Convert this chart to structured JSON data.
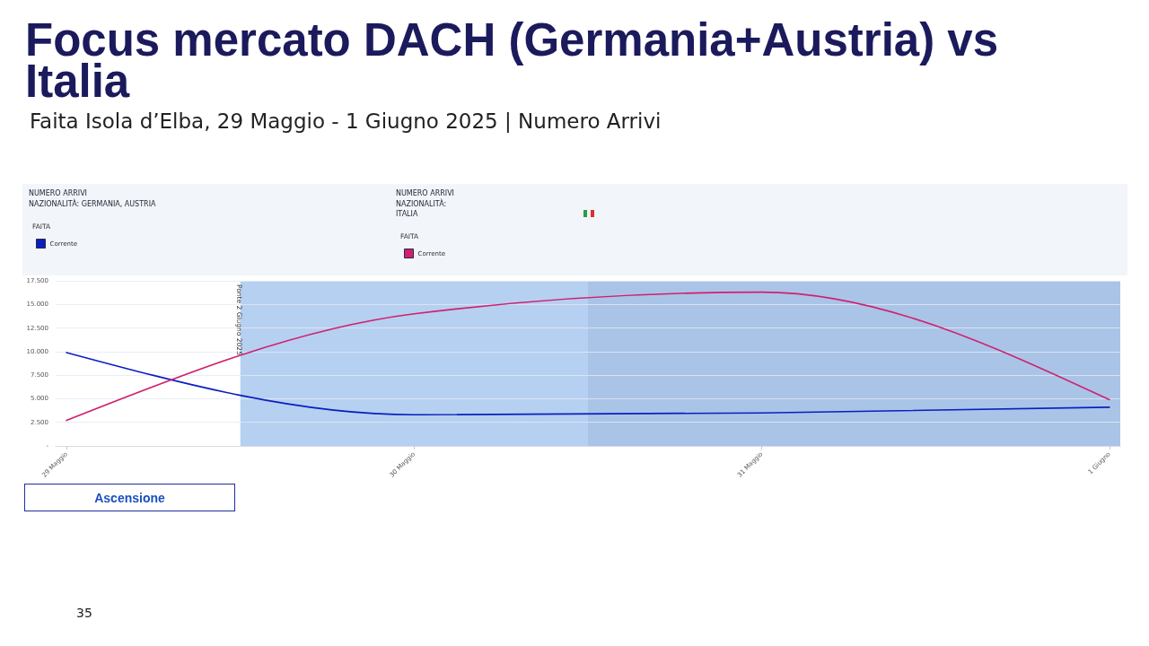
{
  "chart_data": {
    "type": "line",
    "title": "Focus mercato DACH (Germania+Austria) vs Italia",
    "subtitle": "Faita Isola d’Elba, 29 Maggio - 1 Giugno 2025 | Numero Arrivi",
    "legend_title": "FAITA",
    "annotations": [
      "NUMERO ARRIVI\nNAZIONALITÀ: GERMANIA, AUSTRIA",
      "NUMERO ARRIVI\nNAZIONALITÀ:\nITALIA",
      "Ascensione",
      "35"
    ],
    "x": [
      "2025-05-29",
      "2025-05-30",
      "2025-05-31",
      "2025-06-01"
    ],
    "series": [
      {
        "name": "Corrente",
        "color": "#0b1fbf",
        "values": [
          9900,
          3300,
          3500,
          4100
        ]
      },
      {
        "name": "Corrente",
        "color": "#d0206f",
        "values": [
          2700,
          14000,
          16300,
          4900
        ]
      }
    ],
    "xlim": [
      "2025-05-28T23:15",
      "2025-06-01T00:45"
    ],
    "xticks": [
      {
        "value": "2025-05-29",
        "label": "29 Maggio"
      },
      {
        "value": "2025-05-30",
        "label": "30 Maggio"
      },
      {
        "value": "2025-05-31",
        "label": "31 Maggio"
      },
      {
        "value": "2025-06-01",
        "label": "1 Giugno"
      }
    ],
    "ylim": [
      0,
      17500
    ],
    "yticks": [
      {
        "value": 0,
        "label": "-"
      },
      {
        "value": 2500,
        "label": "2.500"
      },
      {
        "value": 5000,
        "label": "5.000"
      },
      {
        "value": 7500,
        "label": "7.500"
      },
      {
        "value": 10000,
        "label": "10.000"
      },
      {
        "value": 12500,
        "label": "12.500"
      },
      {
        "value": 15000,
        "label": "15.000"
      },
      {
        "value": 17500,
        "label": "17.500"
      }
    ],
    "grid": "y",
    "legend": "top left",
    "marker": "none",
    "bands": [
      {
        "axis": "x",
        "from": "2025-05-29T12:00",
        "to": "2025-06-01T00:45",
        "label": "Ponte 2 Giugno 2025",
        "color": "#b6d0f1"
      },
      {
        "axis": "x",
        "from": "2025-05-30T12:00",
        "to": "2025-06-01T00:45",
        "color": "#aac4e8"
      }
    ]
  }
}
